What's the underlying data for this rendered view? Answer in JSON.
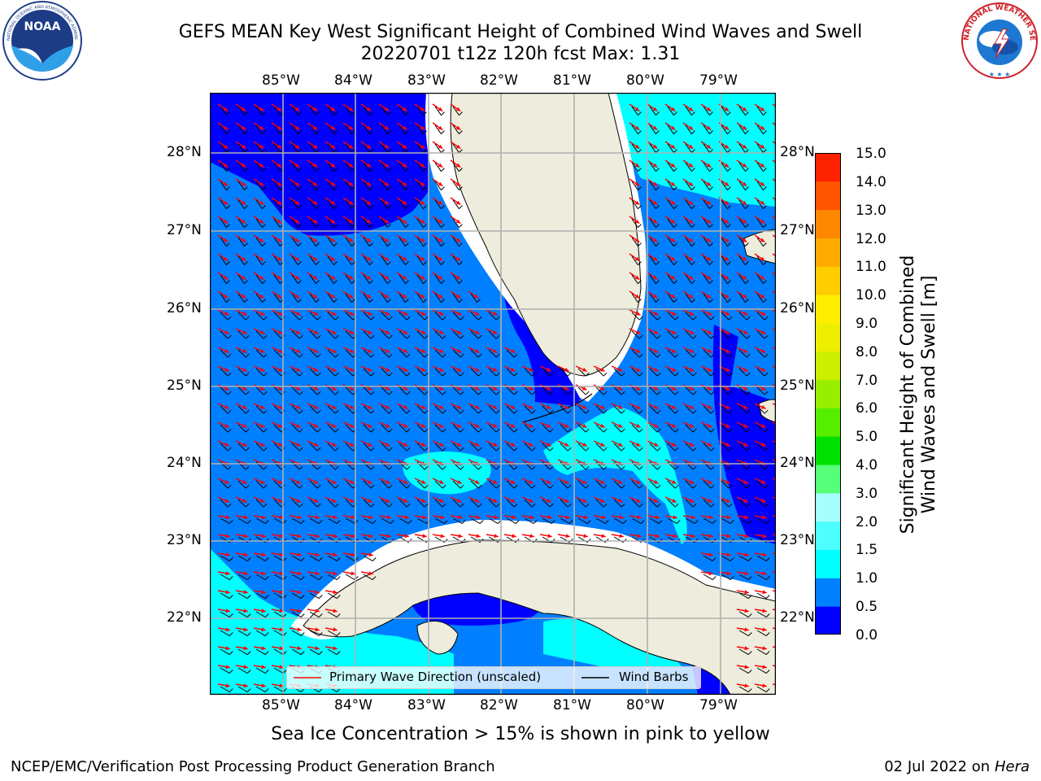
{
  "header": {
    "title_line1": "GEFS MEAN Key West Significant Height of Combined Wind Waves and Swell",
    "title_line2": "20220701 t12z 120h fcst   Max: 1.31"
  },
  "logos": {
    "left": "noaa-logo",
    "left_text": "NOAA",
    "left_ring_text": "NATIONAL OCEANIC AND ATMOSPHERIC ADMINISTRATION · U.S. DEPARTMENT OF COMMERCE",
    "right": "national-weather-service-logo",
    "right_ring_text": "NATIONAL WEATHER SERVICE"
  },
  "map": {
    "lon_labels": [
      "85°W",
      "84°W",
      "83°W",
      "82°W",
      "81°W",
      "80°W",
      "79°W"
    ],
    "lat_labels": [
      "28°N",
      "27°N",
      "26°N",
      "25°N",
      "24°N",
      "23°N",
      "22°N"
    ],
    "colors": {
      "land": "#eeecdc",
      "band_0_0_5": "#0000ff",
      "band_0_5_1_0": "#007fff",
      "band_1_0_1_5": "#00ffff",
      "coast_buffer": "#ffffff",
      "wave_arrow": "#ff0000",
      "wind_barb": "#000000",
      "grid": "#b0b0b0"
    },
    "legend": {
      "primary_wave": "Primary Wave Direction (unscaled)",
      "wind_barbs": "Wind Barbs"
    }
  },
  "colorbar": {
    "label_line1": "Significant Height of Combined",
    "label_line2": "Wind Waves and Swell [m]",
    "ticks": [
      "15.0",
      "14.0",
      "13.0",
      "12.0",
      "11.0",
      "10.0",
      "9.0",
      "8.0",
      "7.0",
      "6.0",
      "5.0",
      "4.0",
      "3.0",
      "2.0",
      "1.5",
      "1.0",
      "0.5",
      "0.0"
    ],
    "colors": [
      "#0000ff",
      "#007fff",
      "#00ffff",
      "#4dffff",
      "#a6ffff",
      "#55ff77",
      "#00e000",
      "#55ee00",
      "#99ee00",
      "#ccee00",
      "#eeee00",
      "#ffee00",
      "#ffcc00",
      "#ffaa00",
      "#ff8800",
      "#ff5500",
      "#ff2200"
    ]
  },
  "notes": {
    "sea_ice": "Sea Ice Concentration > 15% is shown in pink to yellow"
  },
  "footer": {
    "left": "NCEP/EMC/Verification Post Processing Product Generation Branch",
    "right_date": "02 Jul 2022 on ",
    "right_host": "Hera"
  }
}
